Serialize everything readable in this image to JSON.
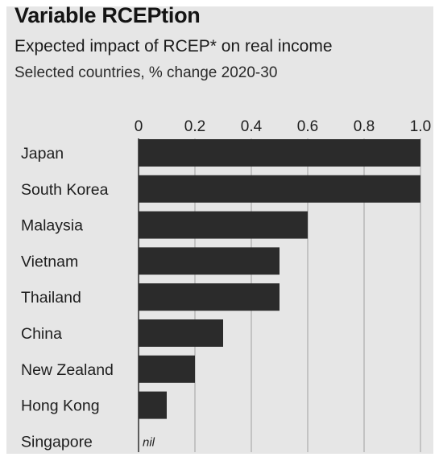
{
  "chart_data": {
    "type": "bar",
    "orientation": "horizontal",
    "title": "Variable RCEPtion",
    "subtitle": "Expected impact of RCEP* on real income",
    "note": "Selected countries, % change 2020-30",
    "categories": [
      "Japan",
      "South Korea",
      "Malaysia",
      "Vietnam",
      "Thailand",
      "China",
      "New Zealand",
      "Hong Kong",
      "Singapore"
    ],
    "values": [
      1.0,
      1.0,
      0.6,
      0.5,
      0.5,
      0.3,
      0.2,
      0.1,
      0
    ],
    "ticks": [
      "0",
      "0.2",
      "0.4",
      "0.6",
      "0.8",
      "1.0"
    ],
    "xlim": [
      0,
      1.0
    ],
    "grid": true,
    "legend": "none",
    "annotations": [
      {
        "category": "Singapore",
        "text": "nil"
      }
    ],
    "colors": {
      "bar": "#2b2b2b",
      "background": "#e6e6e6",
      "grid": "#b4b4b4",
      "axis": "#3a3a3a"
    }
  }
}
